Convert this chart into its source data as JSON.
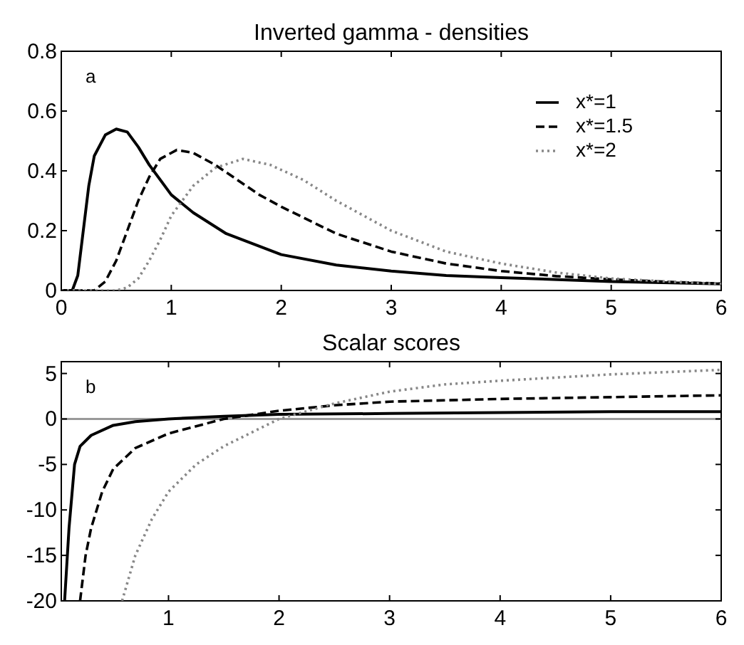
{
  "chart_data": [
    {
      "type": "line",
      "title": "Inverted gamma - densities",
      "annotations": [
        "a"
      ],
      "xlim": [
        0,
        6
      ],
      "xticks": [
        0,
        1,
        2,
        3,
        4,
        5,
        6
      ],
      "ylim": [
        0,
        0.8
      ],
      "yticks": [
        0,
        {
          "value": 0.2,
          "label": "0.2"
        },
        {
          "value": 0.4,
          "label": "0.4"
        },
        {
          "value": 0.6,
          "label": "0.6"
        },
        {
          "value": 0.8,
          "label": "0.8"
        }
      ],
      "grid": false,
      "legend": "top right",
      "series": [
        {
          "name": "x*=1",
          "color": "#000000",
          "line_style": "solid",
          "x": [
            0,
            0.1,
            0.15,
            0.2,
            0.25,
            0.3,
            0.4,
            0.5,
            0.6,
            0.7,
            0.8,
            1,
            1.2,
            1.5,
            2,
            2.5,
            3,
            3.5,
            4,
            5,
            6
          ],
          "values": [
            0,
            0,
            0.05,
            0.2,
            0.35,
            0.45,
            0.52,
            0.54,
            0.53,
            0.48,
            0.42,
            0.32,
            0.26,
            0.19,
            0.12,
            0.085,
            0.065,
            0.05,
            0.043,
            0.03,
            0.022
          ]
        },
        {
          "name": "x*=1.5",
          "color": "#000000",
          "line_style": "dashed",
          "x": [
            0,
            0.3,
            0.4,
            0.5,
            0.6,
            0.7,
            0.8,
            0.9,
            1.05,
            1.2,
            1.4,
            1.6,
            1.8,
            2,
            2.5,
            3,
            3.5,
            4,
            4.5,
            5,
            5.5,
            6
          ],
          "values": [
            0,
            0,
            0.03,
            0.1,
            0.2,
            0.3,
            0.38,
            0.44,
            0.47,
            0.46,
            0.42,
            0.37,
            0.32,
            0.28,
            0.19,
            0.13,
            0.09,
            0.065,
            0.048,
            0.037,
            0.029,
            0.023
          ]
        },
        {
          "name": "x*=2",
          "color": "#888888",
          "line_style": "dotted",
          "x": [
            0,
            0.5,
            0.6,
            0.7,
            0.8,
            0.9,
            1,
            1.2,
            1.4,
            1.65,
            1.9,
            2.2,
            2.5,
            3,
            3.5,
            4,
            4.5,
            5,
            5.5,
            6
          ],
          "values": [
            0,
            0,
            0.01,
            0.04,
            0.1,
            0.17,
            0.25,
            0.35,
            0.41,
            0.44,
            0.42,
            0.37,
            0.3,
            0.2,
            0.13,
            0.09,
            0.06,
            0.04,
            0.03,
            0.022
          ]
        }
      ]
    },
    {
      "type": "line",
      "title": "Scalar scores",
      "annotations": [
        "b"
      ],
      "xlim": [
        0.03,
        6
      ],
      "xticks": [
        1,
        2,
        3,
        4,
        5,
        6
      ],
      "ylim": [
        -20,
        6.3
      ],
      "yticks": [
        -20,
        -15,
        -10,
        -5,
        0,
        5
      ],
      "grid": false,
      "ref_lines": [
        {
          "axis": "y",
          "value": 0,
          "color": "#999999"
        }
      ],
      "series": [
        {
          "color": "#000000",
          "line_style": "solid",
          "x": [
            0.06,
            0.1,
            0.15,
            0.2,
            0.3,
            0.5,
            0.7,
            1,
            1.5,
            2,
            3,
            4,
            5,
            6
          ],
          "values": [
            -20,
            -12,
            -5,
            -3,
            -1.8,
            -0.7,
            -0.3,
            0,
            0.3,
            0.5,
            0.6,
            0.7,
            0.8,
            0.8
          ]
        },
        {
          "color": "#000000",
          "line_style": "dashed",
          "x": [
            0.2,
            0.25,
            0.3,
            0.4,
            0.5,
            0.7,
            1,
            1.5,
            2,
            2.5,
            3,
            4,
            5,
            6
          ],
          "values": [
            -20,
            -15,
            -12,
            -8,
            -5.5,
            -3.2,
            -1.6,
            0,
            0.9,
            1.5,
            1.9,
            2.2,
            2.4,
            2.6
          ]
        },
        {
          "color": "#888888",
          "line_style": "dotted",
          "x": [
            0.58,
            0.7,
            0.85,
            1,
            1.25,
            1.5,
            2,
            2.5,
            3,
            3.5,
            4,
            5,
            6
          ],
          "values": [
            -20,
            -15,
            -11,
            -8,
            -5,
            -3,
            0,
            1.7,
            3,
            3.8,
            4.2,
            4.9,
            5.4
          ]
        }
      ]
    }
  ]
}
